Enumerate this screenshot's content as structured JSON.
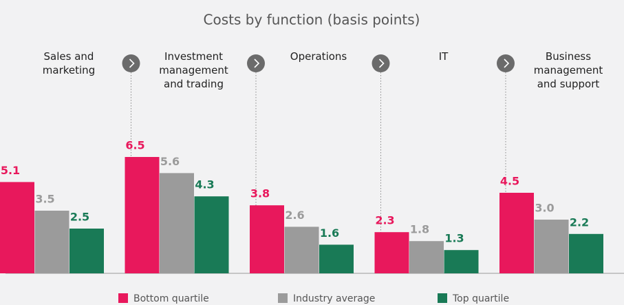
{
  "chart_data": {
    "type": "bar",
    "title": "Costs by function (basis points)",
    "categories": [
      "Sales and\nmarketing",
      "Investment\nmanagement\nand trading",
      "Operations",
      "IT",
      "Business\nmanagement\nand support"
    ],
    "series": [
      {
        "name": "Bottom quartile",
        "color": "#e8185c",
        "values": [
          5.1,
          6.5,
          3.8,
          2.3,
          4.5
        ]
      },
      {
        "name": "Industry average",
        "color": "#9b9b9b",
        "values": [
          3.5,
          5.6,
          2.6,
          1.8,
          3.0
        ],
        "value_labels": [
          "3.5",
          "5.6",
          "2.6",
          "1.8",
          "3.0"
        ]
      },
      {
        "name": "Top quartile",
        "color": "#197a56",
        "values": [
          2.5,
          4.3,
          1.6,
          1.3,
          2.2
        ]
      }
    ],
    "ylim": [
      0,
      8.5
    ]
  }
}
